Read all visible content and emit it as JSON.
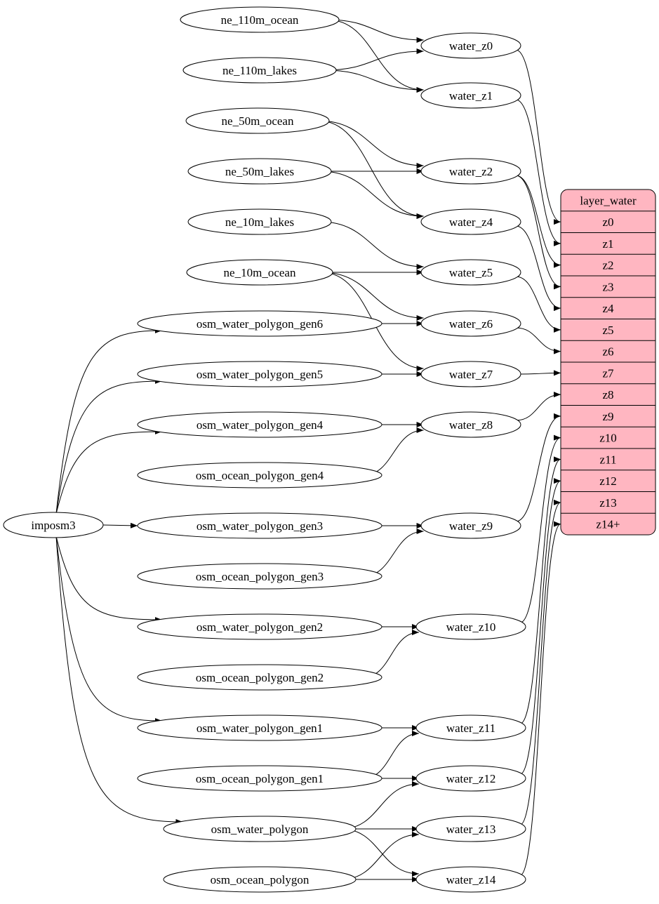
{
  "colors": {
    "record_fill": "#ffb6c1",
    "stroke": "#000000",
    "node_fill": "#ffffff"
  },
  "nodes": [
    {
      "id": "ne_110m_ocean",
      "label": "ne_110m_ocean"
    },
    {
      "id": "ne_110m_lakes",
      "label": "ne_110m_lakes"
    },
    {
      "id": "ne_50m_ocean",
      "label": "ne_50m_ocean"
    },
    {
      "id": "ne_50m_lakes",
      "label": "ne_50m_lakes"
    },
    {
      "id": "ne_10m_lakes",
      "label": "ne_10m_lakes"
    },
    {
      "id": "ne_10m_ocean",
      "label": "ne_10m_ocean"
    },
    {
      "id": "osm_water_polygon_gen6",
      "label": "osm_water_polygon_gen6"
    },
    {
      "id": "osm_water_polygon_gen5",
      "label": "osm_water_polygon_gen5"
    },
    {
      "id": "osm_water_polygon_gen4",
      "label": "osm_water_polygon_gen4"
    },
    {
      "id": "osm_ocean_polygon_gen4",
      "label": "osm_ocean_polygon_gen4"
    },
    {
      "id": "osm_water_polygon_gen3",
      "label": "osm_water_polygon_gen3"
    },
    {
      "id": "osm_ocean_polygon_gen3",
      "label": "osm_ocean_polygon_gen3"
    },
    {
      "id": "osm_water_polygon_gen2",
      "label": "osm_water_polygon_gen2"
    },
    {
      "id": "osm_ocean_polygon_gen2",
      "label": "osm_ocean_polygon_gen2"
    },
    {
      "id": "osm_water_polygon_gen1",
      "label": "osm_water_polygon_gen1"
    },
    {
      "id": "osm_ocean_polygon_gen1",
      "label": "osm_ocean_polygon_gen1"
    },
    {
      "id": "osm_water_polygon",
      "label": "osm_water_polygon"
    },
    {
      "id": "osm_ocean_polygon",
      "label": "osm_ocean_polygon"
    },
    {
      "id": "imposm3",
      "label": "imposm3"
    },
    {
      "id": "water_z0",
      "label": "water_z0"
    },
    {
      "id": "water_z1",
      "label": "water_z1"
    },
    {
      "id": "water_z2",
      "label": "water_z2"
    },
    {
      "id": "water_z4",
      "label": "water_z4"
    },
    {
      "id": "water_z5",
      "label": "water_z5"
    },
    {
      "id": "water_z6",
      "label": "water_z6"
    },
    {
      "id": "water_z7",
      "label": "water_z7"
    },
    {
      "id": "water_z8",
      "label": "water_z8"
    },
    {
      "id": "water_z9",
      "label": "water_z9"
    },
    {
      "id": "water_z10",
      "label": "water_z10"
    },
    {
      "id": "water_z11",
      "label": "water_z11"
    },
    {
      "id": "water_z12",
      "label": "water_z12"
    },
    {
      "id": "water_z13",
      "label": "water_z13"
    },
    {
      "id": "water_z14",
      "label": "water_z14"
    }
  ],
  "record": {
    "id": "layer_water",
    "title": "layer_water",
    "fields": [
      "z0",
      "z1",
      "z2",
      "z3",
      "z4",
      "z5",
      "z6",
      "z7",
      "z8",
      "z9",
      "z10",
      "z11",
      "z12",
      "z13",
      "z14+"
    ]
  },
  "edges": [
    [
      "ne_110m_ocean",
      "water_z0"
    ],
    [
      "ne_110m_ocean",
      "water_z1"
    ],
    [
      "ne_110m_lakes",
      "water_z0"
    ],
    [
      "ne_110m_lakes",
      "water_z1"
    ],
    [
      "ne_50m_ocean",
      "water_z2"
    ],
    [
      "ne_50m_ocean",
      "water_z4"
    ],
    [
      "ne_50m_lakes",
      "water_z2"
    ],
    [
      "ne_50m_lakes",
      "water_z4"
    ],
    [
      "ne_10m_lakes",
      "water_z5"
    ],
    [
      "ne_10m_ocean",
      "water_z5"
    ],
    [
      "ne_10m_ocean",
      "water_z6"
    ],
    [
      "ne_10m_ocean",
      "water_z7"
    ],
    [
      "osm_water_polygon_gen6",
      "water_z6"
    ],
    [
      "osm_water_polygon_gen5",
      "water_z7"
    ],
    [
      "osm_water_polygon_gen4",
      "water_z8"
    ],
    [
      "osm_ocean_polygon_gen4",
      "water_z8"
    ],
    [
      "osm_water_polygon_gen3",
      "water_z9"
    ],
    [
      "osm_ocean_polygon_gen3",
      "water_z9"
    ],
    [
      "osm_water_polygon_gen2",
      "water_z10"
    ],
    [
      "osm_ocean_polygon_gen2",
      "water_z10"
    ],
    [
      "osm_water_polygon_gen1",
      "water_z11"
    ],
    [
      "osm_ocean_polygon_gen1",
      "water_z11"
    ],
    [
      "osm_ocean_polygon_gen1",
      "water_z12"
    ],
    [
      "osm_water_polygon",
      "water_z12"
    ],
    [
      "osm_water_polygon",
      "water_z13"
    ],
    [
      "osm_water_polygon",
      "water_z14"
    ],
    [
      "osm_ocean_polygon",
      "water_z13"
    ],
    [
      "osm_ocean_polygon",
      "water_z14"
    ],
    [
      "imposm3",
      "osm_water_polygon_gen6"
    ],
    [
      "imposm3",
      "osm_water_polygon_gen5"
    ],
    [
      "imposm3",
      "osm_water_polygon_gen4"
    ],
    [
      "imposm3",
      "osm_water_polygon_gen3"
    ],
    [
      "imposm3",
      "osm_water_polygon_gen2"
    ],
    [
      "imposm3",
      "osm_water_polygon_gen1"
    ],
    [
      "imposm3",
      "osm_water_polygon"
    ],
    [
      "water_z0",
      "layer_water:z0"
    ],
    [
      "water_z1",
      "layer_water:z1"
    ],
    [
      "water_z2",
      "layer_water:z2"
    ],
    [
      "water_z2",
      "layer_water:z3"
    ],
    [
      "water_z4",
      "layer_water:z4"
    ],
    [
      "water_z5",
      "layer_water:z5"
    ],
    [
      "water_z6",
      "layer_water:z6"
    ],
    [
      "water_z7",
      "layer_water:z7"
    ],
    [
      "water_z8",
      "layer_water:z8"
    ],
    [
      "water_z9",
      "layer_water:z9"
    ],
    [
      "water_z10",
      "layer_water:z10"
    ],
    [
      "water_z11",
      "layer_water:z11"
    ],
    [
      "water_z12",
      "layer_water:z12"
    ],
    [
      "water_z13",
      "layer_water:z13"
    ],
    [
      "water_z14",
      "layer_water:z14+"
    ]
  ]
}
